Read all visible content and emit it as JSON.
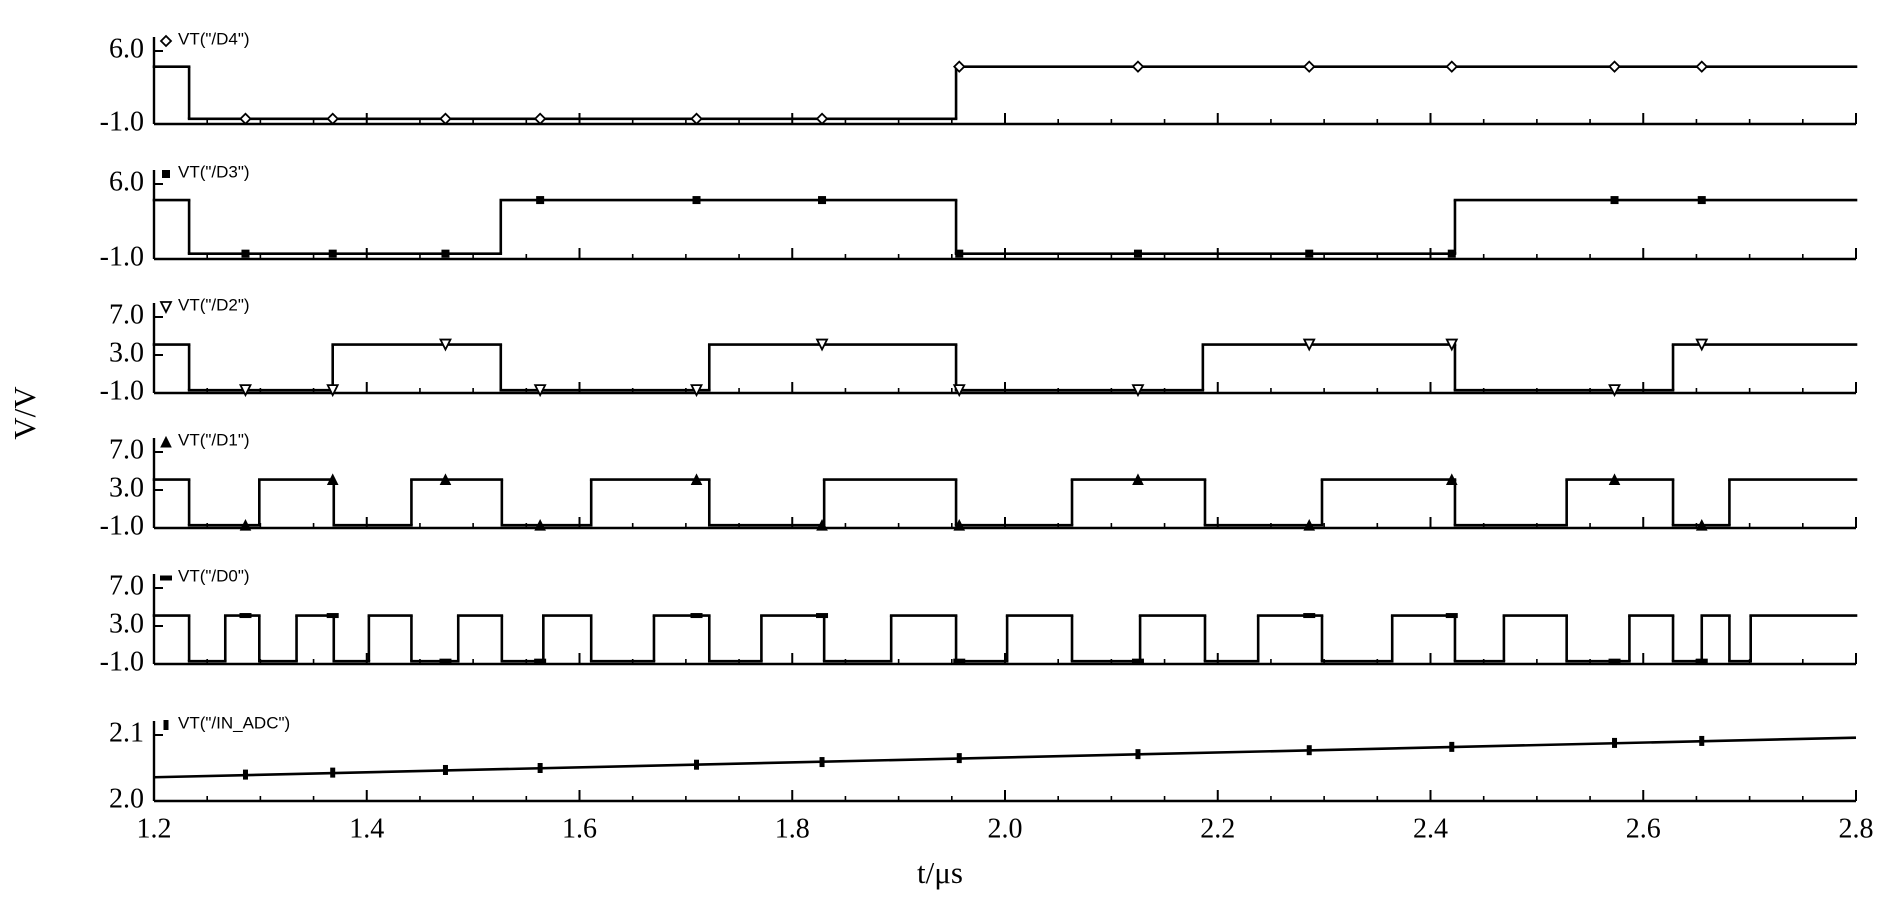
{
  "chart_data": {
    "type": "line",
    "xlabel": "t/μs",
    "ylabel": "V/V",
    "xlim": [
      1.2,
      2.8
    ],
    "xticks": [
      1.2,
      1.4,
      1.6,
      1.8,
      {
        "value": 2,
        "label": "2.0"
      },
      2.2,
      2.4,
      2.6,
      2.8
    ],
    "panels": [
      {
        "ylim": [
          -1,
          6
        ],
        "yticks": [
          {
            "value": -1,
            "label": "-1.0"
          },
          {
            "value": 6,
            "label": "6.0"
          }
        ],
        "series": [
          {
            "name": "VT(\"/D4\")",
            "color": "#000000",
            "marker": "diamond",
            "drawstyle": "steps-post",
            "x": [
              1.2,
              1.233,
              1.954
            ],
            "values": [
              4.5,
              -0.5,
              4.5
            ],
            "markers": {
              "x": [
                1.286,
                1.368,
                1.474,
                1.563,
                1.71,
                1.828,
                1.957,
                2.125,
                2.286,
                2.42,
                2.573,
                2.655
              ],
              "values": [
                -0.5,
                -0.5,
                -0.5,
                -0.5,
                -0.5,
                -0.5,
                4.5,
                4.5,
                4.5,
                4.5,
                4.5,
                4.5
              ]
            }
          }
        ]
      },
      {
        "ylim": [
          -1,
          6
        ],
        "yticks": [
          {
            "value": -1,
            "label": "-1.0"
          },
          {
            "value": 6,
            "label": "6.0"
          }
        ],
        "series": [
          {
            "name": "VT(\"/D3\")",
            "color": "#000000",
            "marker": "square",
            "drawstyle": "steps-post",
            "x": [
              1.2,
              1.233,
              1.526,
              1.954,
              2.423
            ],
            "values": [
              4.5,
              -0.5,
              4.5,
              -0.5,
              4.5
            ],
            "markers": {
              "x": [
                1.286,
                1.368,
                1.474,
                1.563,
                1.71,
                1.828,
                1.957,
                2.125,
                2.286,
                2.42,
                2.573,
                2.655
              ],
              "values": [
                -0.5,
                -0.5,
                -0.5,
                4.5,
                4.5,
                4.5,
                -0.5,
                -0.5,
                -0.5,
                -0.5,
                4.5,
                4.5
              ]
            }
          }
        ]
      },
      {
        "ylim": [
          -1,
          7
        ],
        "yticks": [
          {
            "value": -1,
            "label": "-1.0"
          },
          {
            "value": 3,
            "label": "3.0"
          },
          {
            "value": 7,
            "label": "7.0"
          }
        ],
        "series": [
          {
            "name": "VT(\"/D2\")",
            "color": "#000000",
            "marker": "triangle-down",
            "drawstyle": "steps-post",
            "x": [
              1.2,
              1.233,
              1.368,
              1.526,
              1.722,
              1.954,
              2.186,
              2.423,
              2.628
            ],
            "values": [
              4.1,
              -0.7,
              4.1,
              -0.7,
              4.1,
              -0.7,
              4.1,
              -0.7,
              4.1
            ],
            "markers": {
              "x": [
                1.286,
                1.368,
                1.474,
                1.563,
                1.71,
                1.828,
                1.957,
                2.125,
                2.286,
                2.42,
                2.573,
                2.655
              ],
              "values": [
                -0.7,
                -0.7,
                4.1,
                -0.7,
                -0.7,
                4.1,
                -0.7,
                -0.7,
                4.1,
                4.1,
                -0.7,
                4.1
              ]
            }
          }
        ]
      },
      {
        "ylim": [
          -1,
          7
        ],
        "yticks": [
          {
            "value": -1,
            "label": "-1.0"
          },
          {
            "value": 3,
            "label": "3.0"
          },
          {
            "value": 7,
            "label": "7.0"
          }
        ],
        "series": [
          {
            "name": "VT(\"/D1\")",
            "color": "#000000",
            "marker": "triangle-up",
            "drawstyle": "steps-post",
            "x": [
              1.2,
              1.233,
              1.299,
              1.369,
              1.442,
              1.527,
              1.611,
              1.722,
              1.83,
              1.954,
              2.063,
              2.188,
              2.298,
              2.423,
              2.528,
              2.628,
              2.681
            ],
            "values": [
              4.1,
              -0.7,
              4.1,
              -0.7,
              4.1,
              -0.7,
              4.1,
              -0.7,
              4.1,
              -0.7,
              4.1,
              -0.7,
              4.1,
              -0.7,
              4.1,
              -0.7,
              4.1
            ],
            "markers": {
              "x": [
                1.286,
                1.368,
                1.474,
                1.563,
                1.71,
                1.828,
                1.957,
                2.125,
                2.286,
                2.42,
                2.573,
                2.655
              ],
              "values": [
                -0.7,
                4.1,
                4.1,
                -0.7,
                4.1,
                -0.7,
                -0.7,
                4.1,
                -0.7,
                4.1,
                4.1,
                -0.7
              ]
            }
          }
        ]
      },
      {
        "ylim": [
          -1,
          7
        ],
        "yticks": [
          {
            "value": -1,
            "label": "-1.0"
          },
          {
            "value": 3,
            "label": "3.0"
          },
          {
            "value": 7,
            "label": "7.0"
          }
        ],
        "series": [
          {
            "name": "VT(\"/D0\")",
            "color": "#000000",
            "marker": "dash",
            "drawstyle": "steps-post",
            "x": [
              1.2,
              1.233,
              1.267,
              1.299,
              1.334,
              1.369,
              1.402,
              1.442,
              1.486,
              1.527,
              1.566,
              1.611,
              1.67,
              1.722,
              1.771,
              1.83,
              1.893,
              1.954,
              2.002,
              2.063,
              2.127,
              2.188,
              2.238,
              2.298,
              2.364,
              2.423,
              2.469,
              2.528,
              2.587,
              2.628,
              2.655,
              2.681,
              2.701
            ],
            "values": [
              4.1,
              -0.7,
              4.1,
              -0.7,
              4.1,
              -0.7,
              4.1,
              -0.7,
              4.1,
              -0.7,
              4.1,
              -0.7,
              4.1,
              -0.7,
              4.1,
              -0.7,
              4.1,
              -0.7,
              4.1,
              -0.7,
              4.1,
              -0.7,
              4.1,
              -0.7,
              4.1,
              -0.7,
              4.1,
              -0.7,
              4.1,
              -0.7,
              4.1,
              -0.7,
              4.1
            ],
            "markers": {
              "x": [
                1.286,
                1.368,
                1.474,
                1.563,
                1.71,
                1.828,
                1.957,
                2.125,
                2.286,
                2.42,
                2.573,
                2.655
              ],
              "values": [
                4.1,
                4.1,
                -0.7,
                -0.7,
                4.1,
                4.1,
                -0.7,
                -0.7,
                4.1,
                4.1,
                -0.7,
                -0.7
              ]
            }
          }
        ]
      },
      {
        "ylim": [
          2,
          2.1
        ],
        "yticks": [
          {
            "value": 2,
            "label": "2.0"
          },
          2.1
        ],
        "series": [
          {
            "name": "VT(\"/IN_ADC\")",
            "color": "#000000",
            "marker": "bar",
            "drawstyle": "default",
            "x": [
              1.2,
              2.8
            ],
            "values": [
              2.036,
              2.096
            ],
            "markers": {
              "x": [
                1.286,
                1.368,
                1.474,
                1.563,
                1.71,
                1.828,
                1.957,
                2.125,
                2.286,
                2.42,
                2.573,
                2.655
              ],
              "values": [
                2.04,
                2.043,
                2.047,
                2.05,
                2.055,
                2.059,
                2.065,
                2.071,
                2.077,
                2.082,
                2.088,
                2.091
              ]
            }
          }
        ]
      }
    ]
  }
}
